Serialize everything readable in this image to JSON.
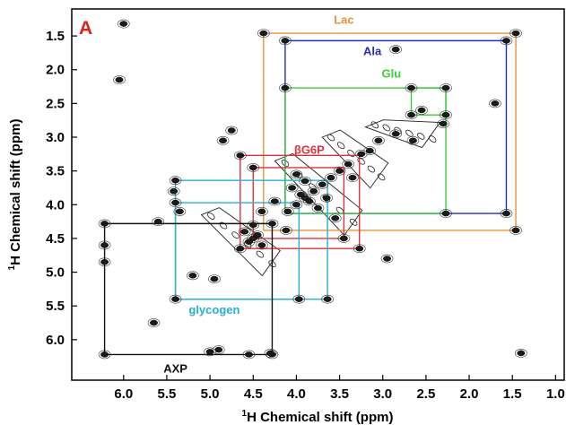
{
  "chart_data": {
    "type": "scatter",
    "panel_label": "A",
    "xlabel_prefix": "1",
    "xlabel_text": "H Chemical shift (ppm)",
    "ylabel_prefix": "1",
    "ylabel_text": "H Chemical shift (ppm)",
    "xlim": [
      6.6,
      0.9
    ],
    "ylim": [
      1.1,
      6.6
    ],
    "x_axis_reversed": true,
    "y_axis_reversed": true,
    "x_ticks": [
      "6.0",
      "5.5",
      "5.0",
      "4.5",
      "4.0",
      "3.5",
      "3.0",
      "2.5",
      "2.0",
      "1.5",
      "1.0"
    ],
    "y_ticks": [
      "1.5",
      "2.0",
      "2.5",
      "3.0",
      "3.5",
      "4.0",
      "4.5",
      "5.0",
      "5.5",
      "6.0"
    ],
    "colors": {
      "lac": "#e8943a",
      "ala": "#2a2ab8",
      "glu": "#3ccc3c",
      "g6p": "#e0323c",
      "glycogen": "#28b0d0",
      "axp": "#111111",
      "panel": "#e02020"
    },
    "spin_systems": [
      {
        "name": "Lac",
        "color": "#e8943a",
        "label_x": 3.45,
        "label_y": 1.25,
        "x": [
          4.38,
          1.46
        ],
        "y": [
          1.46,
          4.38
        ]
      },
      {
        "name": "Ala",
        "color": "#2a2ab8",
        "label_x": 3.12,
        "label_y": 1.72,
        "x": [
          4.13,
          1.57
        ],
        "y": [
          1.57,
          4.13
        ]
      },
      {
        "name": "Glu",
        "color": "#3ccc3c",
        "label_x": 2.9,
        "label_y": 2.05,
        "x": [
          4.13,
          2.27
        ],
        "y": [
          2.27,
          4.13
        ]
      },
      {
        "name": "Glu",
        "color": "#3ccc3c",
        "label_x": null,
        "label_y": null,
        "x": [
          2.67,
          2.27
        ],
        "y": [
          2.27,
          2.67
        ]
      },
      {
        "name": "βG6P",
        "color": "#e0323c",
        "label_x": 3.85,
        "label_y": 3.18,
        "x": [
          4.65,
          3.27
        ],
        "y": [
          3.27,
          4.65
        ]
      },
      {
        "name": "βG6P",
        "color": "#e0323c",
        "label_x": null,
        "label_y": null,
        "x": [
          4.5,
          3.45
        ],
        "y": [
          3.45,
          4.5
        ]
      },
      {
        "name": "glycogen",
        "color": "#28b0d0",
        "label_x": 4.95,
        "label_y": 5.55,
        "x": [
          5.4,
          3.64
        ],
        "y": [
          3.64,
          5.4
        ]
      },
      {
        "name": "glycogen",
        "color": "#28b0d0",
        "label_x": null,
        "label_y": null,
        "x": [
          5.4,
          3.97
        ],
        "y": [
          3.97,
          5.4
        ]
      },
      {
        "name": "AXP",
        "color": "#111111",
        "label_x": 5.4,
        "label_y": 6.42,
        "x": [
          6.22,
          4.28
        ],
        "y": [
          4.28,
          6.22
        ]
      }
    ],
    "peak_bands": [
      {
        "x1": 4.25,
        "y1": 3.35,
        "x2": 3.3,
        "y2": 4.4
      },
      {
        "x1": 5.1,
        "y1": 4.15,
        "x2": 4.25,
        "y2": 5.0
      },
      {
        "x1": 3.7,
        "y1": 3.0,
        "x2": 3.0,
        "y2": 3.7
      },
      {
        "x1": 3.2,
        "y1": 2.85,
        "x2": 2.4,
        "y2": 3.1
      }
    ],
    "peaks": [
      [
        1.46,
        1.46
      ],
      [
        4.38,
        1.46
      ],
      [
        1.46,
        4.38
      ],
      [
        1.57,
        1.57
      ],
      [
        4.13,
        1.57
      ],
      [
        1.57,
        4.13
      ],
      [
        2.27,
        2.27
      ],
      [
        4.13,
        2.27
      ],
      [
        2.27,
        4.13
      ],
      [
        2.67,
        2.67
      ],
      [
        2.67,
        2.27
      ],
      [
        2.27,
        2.67
      ],
      [
        2.55,
        2.6
      ],
      [
        4.65,
        3.27
      ],
      [
        3.27,
        4.65
      ],
      [
        4.5,
        3.45
      ],
      [
        3.45,
        4.5
      ],
      [
        4.65,
        4.65
      ],
      [
        4.5,
        4.5
      ],
      [
        5.4,
        3.64
      ],
      [
        3.64,
        5.4
      ],
      [
        5.4,
        3.97
      ],
      [
        3.97,
        5.4
      ],
      [
        5.4,
        5.4
      ],
      [
        5.42,
        3.8
      ],
      [
        5.35,
        4.1
      ],
      [
        6.22,
        4.28
      ],
      [
        4.28,
        6.22
      ],
      [
        6.22,
        4.6
      ],
      [
        6.22,
        4.85
      ],
      [
        6.22,
        6.22
      ],
      [
        4.28,
        4.28
      ],
      [
        4.55,
        6.22
      ],
      [
        4.3,
        6.2
      ],
      [
        3.8,
        3.8
      ],
      [
        3.9,
        3.9
      ],
      [
        4.0,
        4.0
      ],
      [
        3.7,
        3.7
      ],
      [
        3.6,
        3.6
      ],
      [
        4.1,
        4.1
      ],
      [
        3.5,
        3.5
      ],
      [
        3.85,
        3.95
      ],
      [
        3.95,
        3.85
      ],
      [
        3.75,
        4.05
      ],
      [
        4.05,
        3.75
      ],
      [
        3.65,
        3.9
      ],
      [
        3.9,
        3.65
      ],
      [
        4.45,
        4.45
      ],
      [
        4.55,
        4.55
      ],
      [
        4.4,
        4.6
      ],
      [
        4.6,
        4.4
      ],
      [
        4.5,
        4.3
      ],
      [
        3.25,
        3.25
      ],
      [
        3.05,
        3.05
      ],
      [
        2.85,
        2.95
      ],
      [
        3.4,
        3.4
      ],
      [
        3.15,
        3.2
      ],
      [
        4.75,
        2.9
      ],
      [
        2.65,
        3.05
      ],
      [
        4.4,
        4.1
      ],
      [
        4.12,
        4.38
      ],
      [
        5.65,
        5.75
      ],
      [
        5.2,
        5.05
      ],
      [
        4.9,
        6.15
      ],
      [
        5.0,
        6.18
      ],
      [
        4.95,
        5.1
      ],
      [
        6.0,
        1.32
      ],
      [
        6.05,
        2.15
      ],
      [
        2.85,
        1.7
      ],
      [
        2.3,
        2.8
      ],
      [
        1.7,
        2.5
      ],
      [
        1.4,
        6.2
      ],
      [
        3.55,
        4.2
      ],
      [
        3.35,
        3.6
      ],
      [
        4.0,
        3.55
      ],
      [
        4.25,
        3.95
      ],
      [
        4.85,
        3.05
      ],
      [
        2.95,
        4.8
      ],
      [
        5.6,
        4.25
      ]
    ]
  }
}
